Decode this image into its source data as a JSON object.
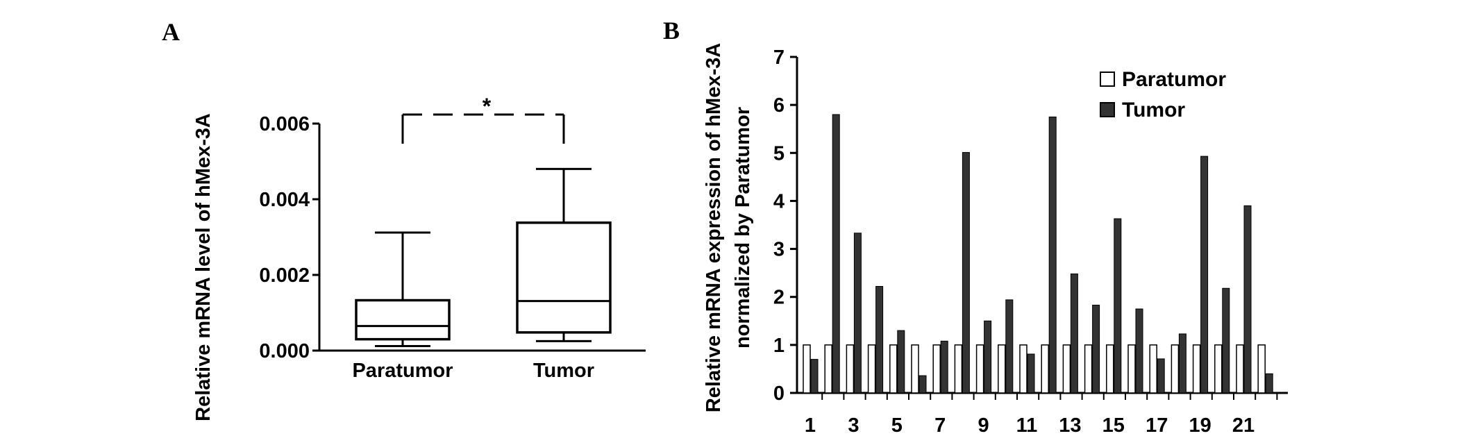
{
  "panel_a_label": "A",
  "panel_b_label": "B",
  "chart_data": [
    {
      "type": "boxplot",
      "ylabel": "Relative mRNA level of hMex-3A",
      "ylim": [
        0,
        0.006
      ],
      "yticks": [
        "0.000",
        "0.002",
        "0.004",
        "0.006"
      ],
      "categories": [
        "Paratumor",
        "Tumor"
      ],
      "boxes": [
        {
          "name": "Paratumor",
          "whisker_low": 0.00012,
          "q1": 0.0003,
          "median": 0.00065,
          "q3": 0.00133,
          "whisker_high": 0.00312
        },
        {
          "name": "Tumor",
          "whisker_low": 0.00025,
          "q1": 0.00048,
          "median": 0.00131,
          "q3": 0.00338,
          "whisker_high": 0.0048
        }
      ],
      "significance": "*"
    },
    {
      "type": "bar",
      "ylabel_line1": "Relative mRNA expression of hMex-3A",
      "ylabel_line2": "normalized by Paratumor",
      "ylim": [
        0,
        7
      ],
      "yticks": [
        "0",
        "1",
        "2",
        "3",
        "4",
        "5",
        "6",
        "7"
      ],
      "x_tick_labels": [
        "1",
        "3",
        "5",
        "7",
        "9",
        "11",
        "13",
        "15",
        "17",
        "19",
        "21"
      ],
      "categories": [
        "1",
        "2",
        "3",
        "4",
        "5",
        "6",
        "7",
        "8",
        "9",
        "10",
        "11",
        "12",
        "13",
        "14",
        "15",
        "16",
        "17",
        "18",
        "19",
        "20",
        "21",
        "22"
      ],
      "legend_position": "top-right",
      "series": [
        {
          "name": "Paratumor",
          "color": "#ffffff",
          "values": [
            1,
            1,
            1,
            1,
            1,
            1,
            1,
            1,
            1,
            1,
            1,
            1,
            1,
            1,
            1,
            1,
            1,
            1,
            1,
            1,
            1,
            1
          ]
        },
        {
          "name": "Tumor",
          "color": "#333333",
          "values": [
            0.7,
            5.8,
            3.33,
            2.22,
            1.3,
            0.36,
            1.08,
            5.01,
            1.5,
            1.94,
            0.81,
            5.75,
            2.48,
            1.83,
            3.63,
            1.75,
            0.71,
            1.23,
            4.93,
            2.18,
            3.9,
            0.4
          ]
        }
      ]
    }
  ]
}
